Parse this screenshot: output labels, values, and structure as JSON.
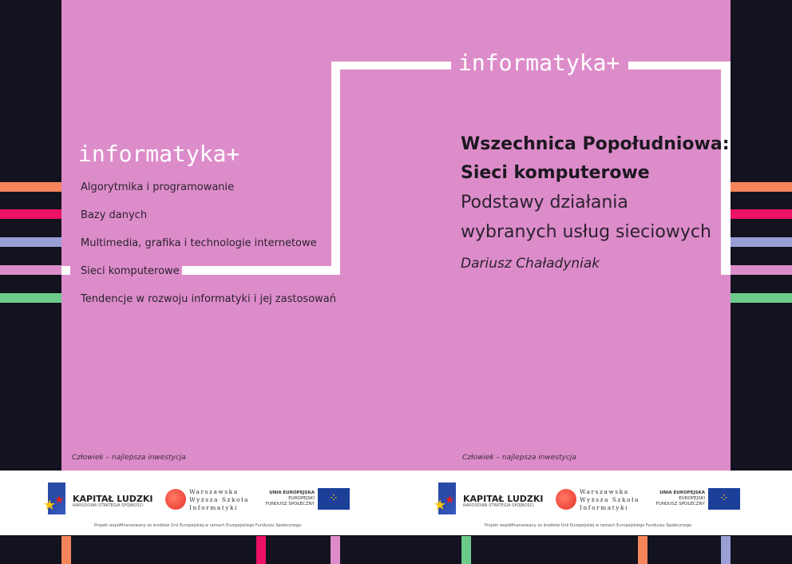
{
  "brand": "informatyka+",
  "menu": [
    "Algorytmika i programowanie",
    "Bazy danych",
    "Multimedia, grafika i technologie internetowe",
    "Sieci komputerowe",
    "Tendencje w rozwoju informatyki i jej zastosowań"
  ],
  "title": {
    "line1": "Wszechnica Popołudniowa:",
    "line2": "Sieci komputerowe",
    "sub1": "Podstawy działania",
    "sub2": "wybranych usług sieciowych",
    "author": "Dariusz Chaładyniak"
  },
  "motto": "Człowiek – najlepsza inwestycja",
  "footer": {
    "kl": "KAPITAŁ LUDZKI",
    "kl_sub": "NARODOWA STRATEGIA SPÓJNOŚCI",
    "wwsi": [
      "Warszawska",
      "Wyższa Szkoła",
      "Informatyki"
    ],
    "ue": [
      "UNIA EUROPEJSKA",
      "EUROPEJSKI",
      "FUNDUSZ SPOŁECZNY"
    ],
    "project": "Projekt współfinansowany ze środków Unii Europejskiej w ramach Europejskiego Funduszu Społecznego."
  },
  "colors": {
    "background": "#12131f",
    "panel": "#dd8cca",
    "orange": "#f5855a",
    "magenta": "#ec1163",
    "lavender": "#9a9fd6",
    "green": "#6ccb8a"
  }
}
